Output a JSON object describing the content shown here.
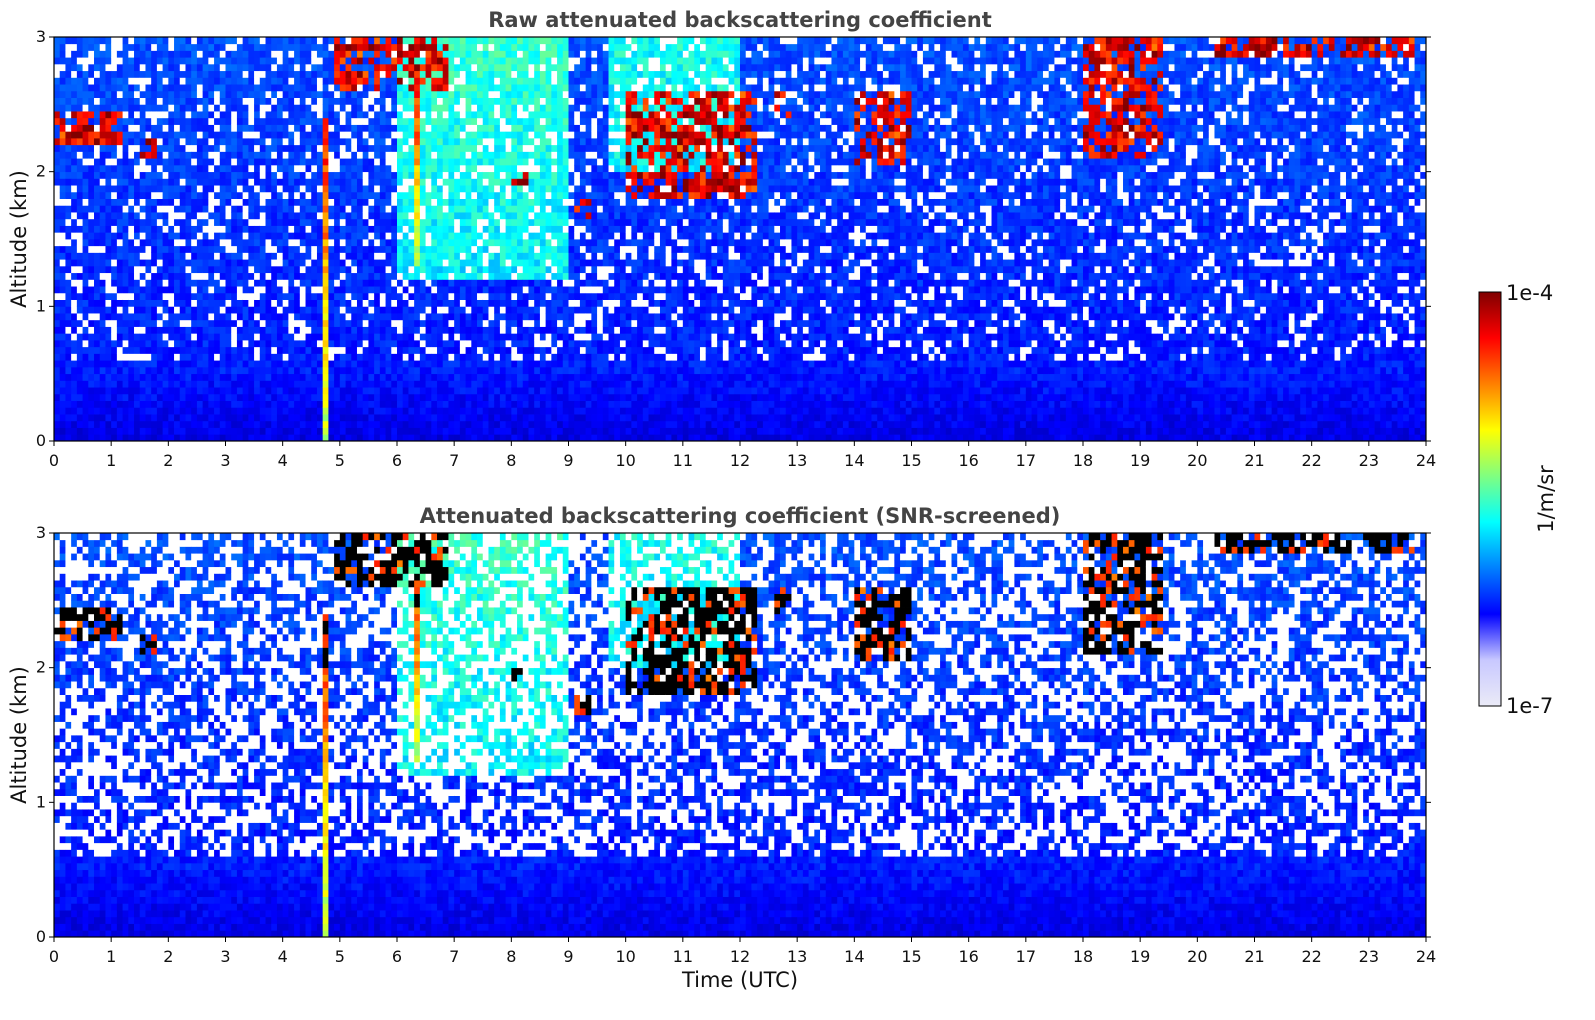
{
  "chart_data": [
    {
      "type": "heatmap",
      "title": "Raw attenuated backscattering coefficient",
      "ylabel": "Altitude (km)",
      "xlabel": "",
      "x_unit": "Time (UTC)",
      "xlim": [
        0,
        24
      ],
      "ylim": [
        0,
        3
      ],
      "xticks": [
        0,
        1,
        2,
        3,
        4,
        5,
        6,
        7,
        8,
        9,
        10,
        11,
        12,
        13,
        14,
        15,
        16,
        17,
        18,
        19,
        20,
        21,
        22,
        23,
        24
      ],
      "yticks": [
        0,
        1,
        2,
        3
      ],
      "screened": false,
      "features": {
        "cloud_layers": [
          {
            "t_start": 0.05,
            "t_end": 1.2,
            "alt_bottom": 2.2,
            "alt_top": 2.45
          },
          {
            "t_start": 1.5,
            "t_end": 1.8,
            "alt_bottom": 2.1,
            "alt_top": 2.25
          },
          {
            "t_start": 4.9,
            "t_end": 6.9,
            "alt_bottom": 2.6,
            "alt_top": 3.0
          },
          {
            "t_start": 8.0,
            "t_end": 8.3,
            "alt_bottom": 1.9,
            "alt_top": 2.0
          },
          {
            "t_start": 9.1,
            "t_end": 9.4,
            "alt_bottom": 1.65,
            "alt_top": 1.8
          },
          {
            "t_start": 10.0,
            "t_end": 12.3,
            "alt_bottom": 1.8,
            "alt_top": 2.6
          },
          {
            "t_start": 12.6,
            "t_end": 12.9,
            "alt_bottom": 2.4,
            "alt_top": 2.6
          },
          {
            "t_start": 14.0,
            "t_end": 15.0,
            "alt_bottom": 2.05,
            "alt_top": 2.6
          },
          {
            "t_start": 18.0,
            "t_end": 19.4,
            "alt_bottom": 2.1,
            "alt_top": 3.0
          },
          {
            "t_start": 20.3,
            "t_end": 23.8,
            "alt_bottom": 2.85,
            "alt_top": 3.0
          }
        ],
        "fall_streaks": [
          {
            "t": 4.75,
            "alt_from": 0.0,
            "alt_to": 2.4
          },
          {
            "t": 6.35,
            "alt_from": 1.3,
            "alt_to": 2.7
          }
        ],
        "boundary_layer_top_km": 0.5
      }
    },
    {
      "type": "heatmap",
      "title": "Attenuated backscattering coefficient (SNR-screened)",
      "ylabel": "Altitude (km)",
      "xlabel": "Time (UTC)",
      "xlim": [
        0,
        24
      ],
      "ylim": [
        0,
        3
      ],
      "xticks": [
        0,
        1,
        2,
        3,
        4,
        5,
        6,
        7,
        8,
        9,
        10,
        11,
        12,
        13,
        14,
        15,
        16,
        17,
        18,
        19,
        20,
        21,
        22,
        23,
        24
      ],
      "yticks": [
        0,
        1,
        2,
        3
      ],
      "screened": true
    }
  ],
  "colorbar": {
    "label": "1/m/sr",
    "max_label": "1e-4",
    "min_label": "1e-7",
    "colormap": "jet",
    "colors": [
      "#ebebf7",
      "#c8c8ff",
      "#0000ff",
      "#0080ff",
      "#00ffff",
      "#80ff80",
      "#ffff00",
      "#ff8000",
      "#ff0000",
      "#800000"
    ],
    "scale": "log"
  },
  "colors": {
    "title_text": "#444444",
    "axis": "#000000",
    "cloud_core": "#800000",
    "cloud_core_screened": "#000000"
  }
}
